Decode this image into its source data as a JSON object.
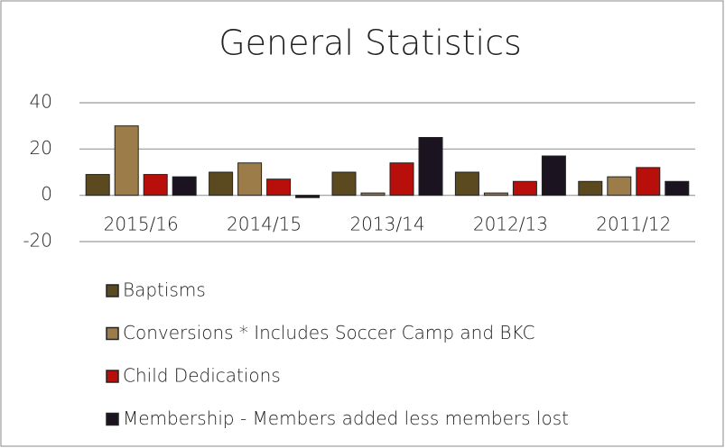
{
  "chart_data": {
    "type": "bar",
    "title": "General Statistics",
    "categories": [
      "2015/16",
      "2014/15",
      "2013/14",
      "2012/13",
      "2011/12"
    ],
    "series": [
      {
        "name": "Baptisms",
        "color": "#5b4a1f",
        "values": [
          9,
          10,
          10,
          10,
          6
        ]
      },
      {
        "name": "Conversions * Includes Soccer Camp and BKC",
        "color": "#9c7d4a",
        "values": [
          30,
          14,
          1,
          1,
          8
        ]
      },
      {
        "name": "Child Dedications",
        "color": "#b80f0a",
        "values": [
          9,
          7,
          14,
          6,
          12
        ]
      },
      {
        "name": "Membership - Members added less members lost",
        "color": "#1b1420",
        "values": [
          8,
          -1,
          25,
          17,
          6
        ]
      }
    ],
    "ylim": [
      -20,
      40
    ],
    "yticks": [
      -20,
      0,
      20,
      40
    ],
    "grid": true,
    "legend": "bottom"
  }
}
